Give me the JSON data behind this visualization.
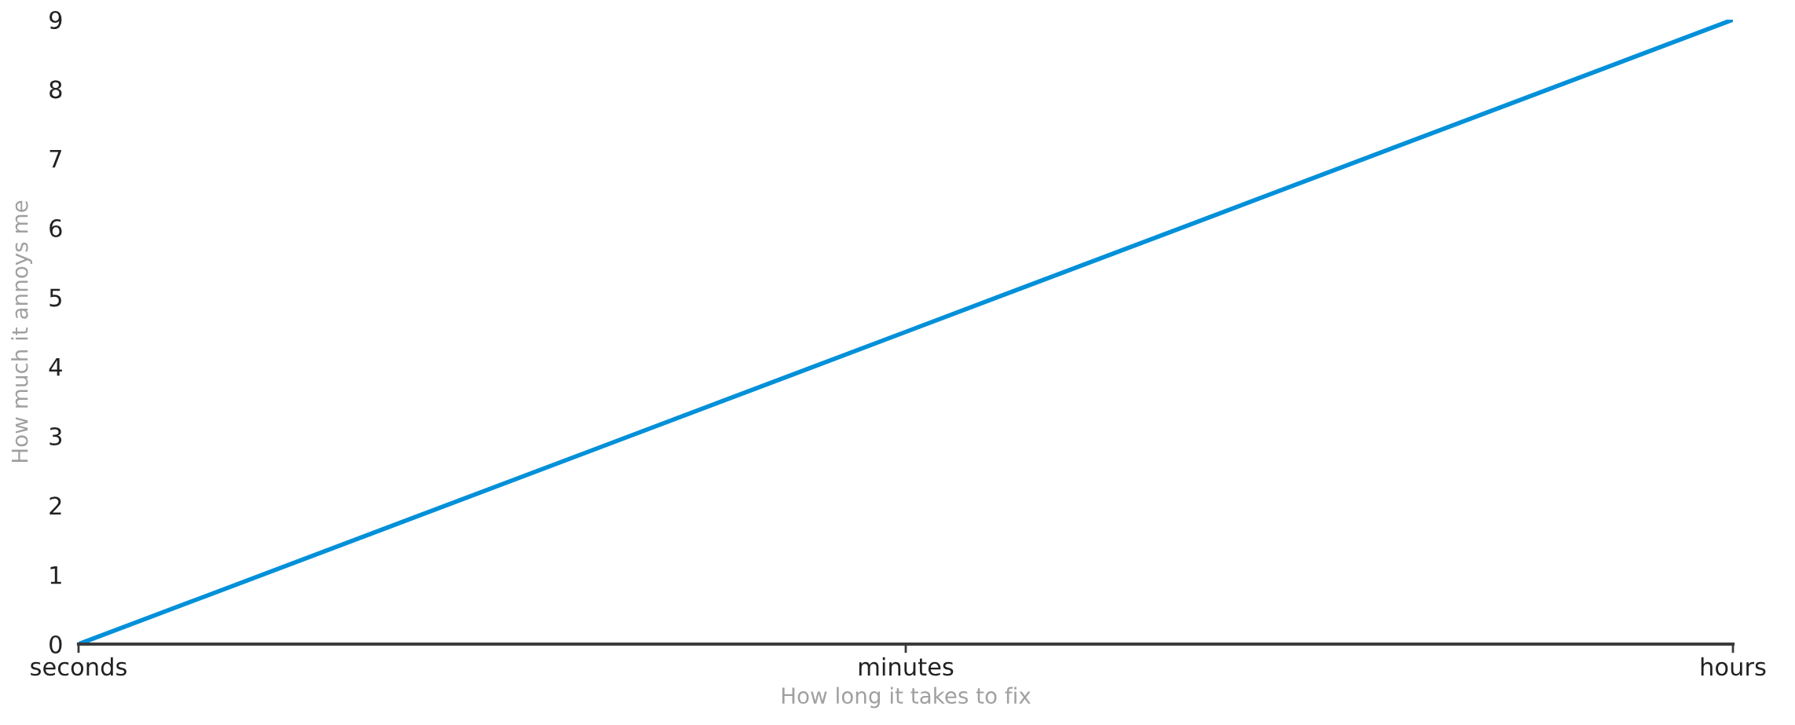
{
  "chart_data": {
    "type": "line",
    "xlabel": "How long it takes to fix",
    "ylabel": "How much it annoys me",
    "categories": [
      "seconds",
      "minutes",
      "hours"
    ],
    "series": [
      {
        "color": "#0090d9",
        "values": [
          0,
          4.5,
          9
        ]
      }
    ],
    "ylim": [
      0,
      9
    ],
    "yticks": [
      0,
      1,
      2,
      3,
      4,
      5,
      6,
      7,
      8,
      9
    ],
    "grid": false,
    "marker": "none",
    "line_style": "solid"
  }
}
